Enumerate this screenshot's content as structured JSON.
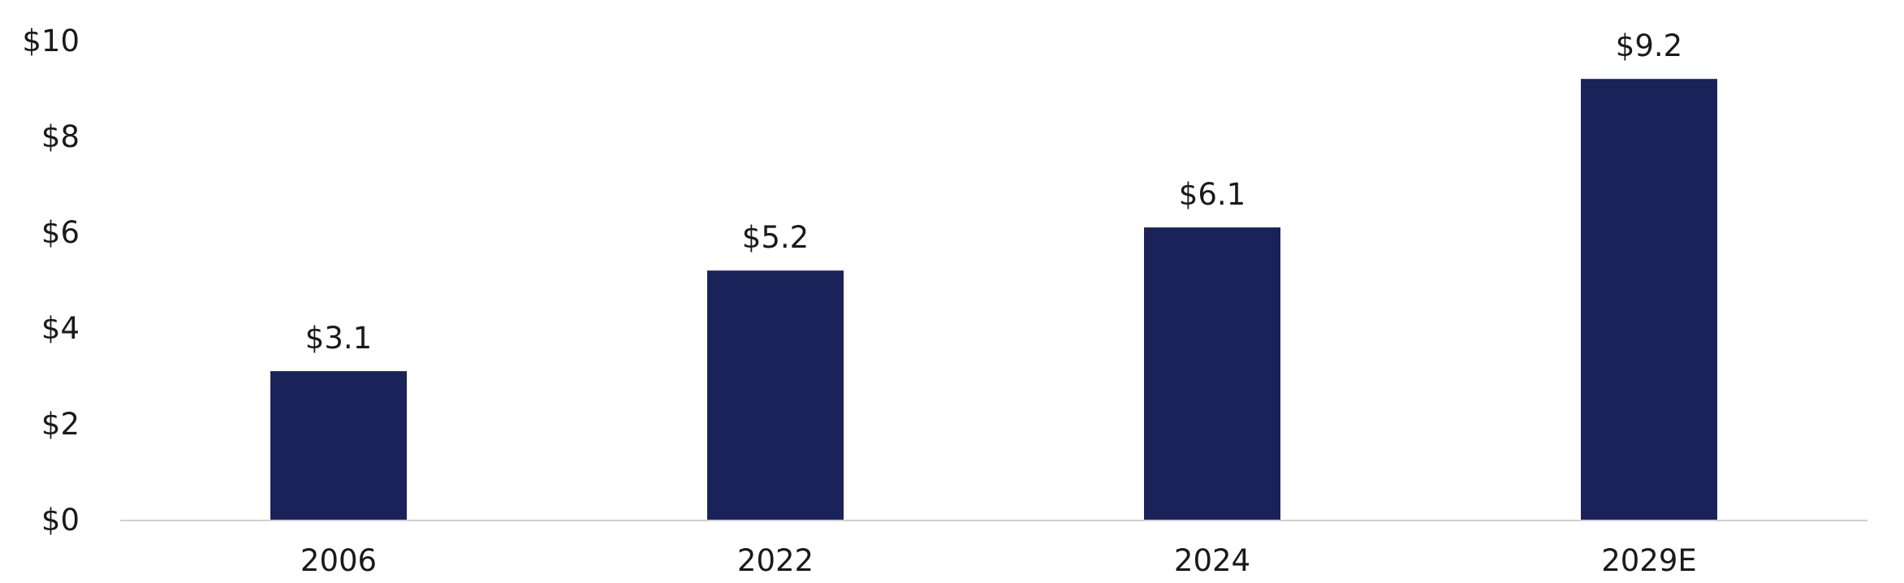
{
  "chart_data": {
    "type": "bar",
    "title": "",
    "xlabel": "",
    "ylabel": "",
    "categories": [
      "2006",
      "2022",
      "2024",
      "2029E"
    ],
    "values": [
      3.1,
      5.2,
      6.1,
      9.2
    ],
    "data_labels": [
      "$3.1",
      "$5.2",
      "$6.1",
      "$9.2"
    ],
    "ylim": [
      0,
      10
    ],
    "yticks": [
      0,
      2,
      4,
      6,
      8,
      10
    ],
    "ytick_labels": [
      "$0",
      "$2",
      "$4",
      "$6",
      "$8",
      "$10"
    ],
    "grid": false,
    "legend": "none",
    "bar_color": "#1a2259",
    "axis_color": "#d0d0d0"
  }
}
